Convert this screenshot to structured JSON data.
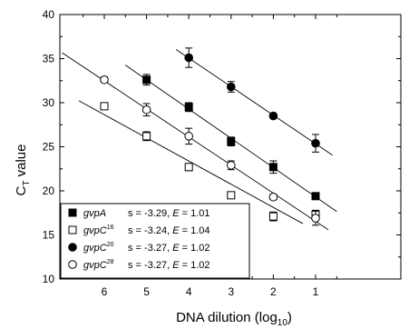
{
  "chart_data": {
    "type": "scatter",
    "xlabel": {
      "main": "DNA dilution (log",
      "sub": "10",
      "tail": ")"
    },
    "ylabel": {
      "main": "C",
      "sub": "T",
      "tail": " value"
    },
    "xlim": [
      7,
      0
    ],
    "ylim": [
      10,
      40
    ],
    "x_ticks": [
      6,
      5,
      4,
      3,
      2,
      1
    ],
    "y_ticks": [
      10,
      15,
      20,
      25,
      30,
      35,
      40
    ],
    "grid": false,
    "legend_position": "bottom-left",
    "series": [
      {
        "name": {
          "main": "gvpA",
          "sup": ""
        },
        "stats": {
          "s": "s = -3.29,",
          "e_label": "E",
          "e_value": "= 1.01"
        },
        "marker": "square-filled",
        "x": [
          5,
          4,
          3,
          2,
          1
        ],
        "y": [
          32.6,
          29.5,
          25.6,
          22.7,
          19.4
        ],
        "err": [
          0.6,
          0.5,
          0.5,
          0.7,
          0.3
        ],
        "fit_x": [
          5.5,
          0.5
        ]
      },
      {
        "name": {
          "main": "gvpC",
          "sup": "16"
        },
        "stats": {
          "s": "s = -3.24,",
          "e_label": "E",
          "e_value": "= 1.04"
        },
        "marker": "square-open",
        "x": [
          6,
          5,
          4,
          3,
          2,
          1
        ],
        "y": [
          29.6,
          26.2,
          22.7,
          19.5,
          17.1,
          17.3
        ],
        "err": [
          0.3,
          0.5,
          0.4,
          0.2,
          0.5,
          0.5
        ],
        "fit_x": [
          6.6,
          1.3
        ]
      },
      {
        "name": {
          "main": "gvpC",
          "sup": "20"
        },
        "stats": {
          "s": "s = -3.27,",
          "e_label": "E",
          "e_value": "= 1.02"
        },
        "marker": "circle-filled",
        "x": [
          4,
          3,
          2,
          1
        ],
        "y": [
          35.1,
          31.8,
          28.5,
          25.4
        ],
        "err": [
          1.1,
          0.6,
          0.2,
          1.0
        ],
        "fit_x": [
          4.3,
          0.6
        ]
      },
      {
        "name": {
          "main": "gvpC",
          "sup": "28"
        },
        "stats": {
          "s": "s = -3.27,",
          "e_label": "E",
          "e_value": "= 1.02"
        },
        "marker": "circle-open",
        "x": [
          6,
          5,
          4,
          3,
          2,
          1
        ],
        "y": [
          32.6,
          29.2,
          26.2,
          22.9,
          19.3,
          16.9
        ],
        "err": [
          0.3,
          0.7,
          0.9,
          0.5,
          0.3,
          0.8
        ],
        "fit_x": [
          7.0,
          0.7
        ]
      }
    ]
  }
}
